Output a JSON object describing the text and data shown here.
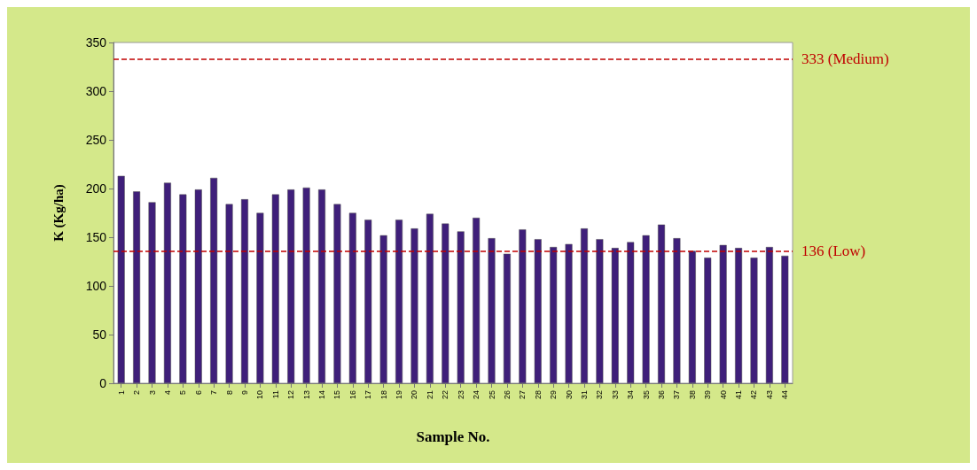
{
  "chart_data": {
    "type": "bar",
    "xlabel": "Sample No.",
    "ylabel": "K (Kg/ha)",
    "categories": [
      "1",
      "2",
      "3",
      "4",
      "5",
      "6",
      "7",
      "8",
      "9",
      "10",
      "11",
      "12",
      "13",
      "14",
      "15",
      "16",
      "17",
      "18",
      "19",
      "20",
      "21",
      "22",
      "23",
      "24",
      "25",
      "26",
      "27",
      "28",
      "29",
      "30",
      "31",
      "32",
      "33",
      "34",
      "35",
      "36",
      "37",
      "38",
      "39",
      "40",
      "41",
      "42",
      "43",
      "44"
    ],
    "values": [
      213,
      197,
      186,
      206,
      194,
      199,
      211,
      184,
      189,
      175,
      194,
      199,
      201,
      199,
      184,
      175,
      168,
      152,
      168,
      159,
      174,
      164,
      156,
      170,
      149,
      133,
      158,
      148,
      140,
      143,
      159,
      148,
      139,
      145,
      152,
      163,
      149,
      136,
      129,
      142,
      139,
      129,
      140,
      131
    ],
    "color": "#3f1f7a",
    "ylim": [
      0,
      350
    ],
    "yticks": [
      0,
      50,
      100,
      150,
      200,
      250,
      300,
      350
    ],
    "grid": false,
    "ref_lines": [
      {
        "axis": "y",
        "value": 333,
        "label": "333 (Medium)",
        "color": "#c00000",
        "line_style": "dashed"
      },
      {
        "axis": "y",
        "value": 136,
        "label": "136 (Low)",
        "color": "#c00000",
        "line_style": "dashed"
      }
    ]
  }
}
